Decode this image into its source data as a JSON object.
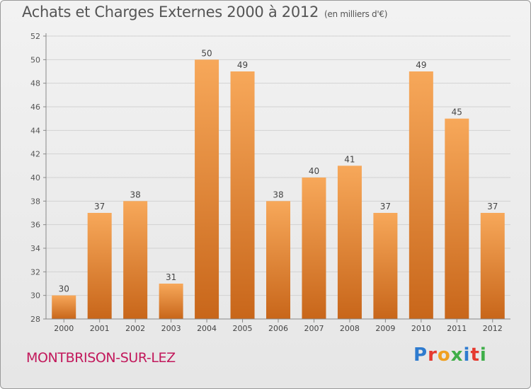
{
  "header": {
    "title": "Achats et Charges Externes 2000 à 2012",
    "unit": "(en milliers d'€)"
  },
  "footer": {
    "commune": "MONTBRISON-SUR-LEZ",
    "logo_text": "Proxiti"
  },
  "colors": {
    "bar_top": "#f7a85a",
    "bar_bottom": "#c8661a",
    "commune": "#c2185b",
    "logo_letters": [
      "#2e7bcf",
      "#e5392f",
      "#f0a020",
      "#3fae49",
      "#2e7bcf",
      "#e5392f",
      "#3fae49"
    ]
  },
  "chart_data": {
    "type": "bar",
    "categories": [
      "2000",
      "2001",
      "2002",
      "2003",
      "2004",
      "2005",
      "2006",
      "2007",
      "2008",
      "2009",
      "2010",
      "2011",
      "2012"
    ],
    "values": [
      30,
      37,
      38,
      31,
      50,
      49,
      38,
      40,
      41,
      37,
      49,
      45,
      37
    ],
    "ylim": [
      28,
      52
    ],
    "yticks": [
      28,
      30,
      32,
      34,
      36,
      38,
      40,
      42,
      44,
      46,
      48,
      50,
      52
    ],
    "grid": true
  }
}
